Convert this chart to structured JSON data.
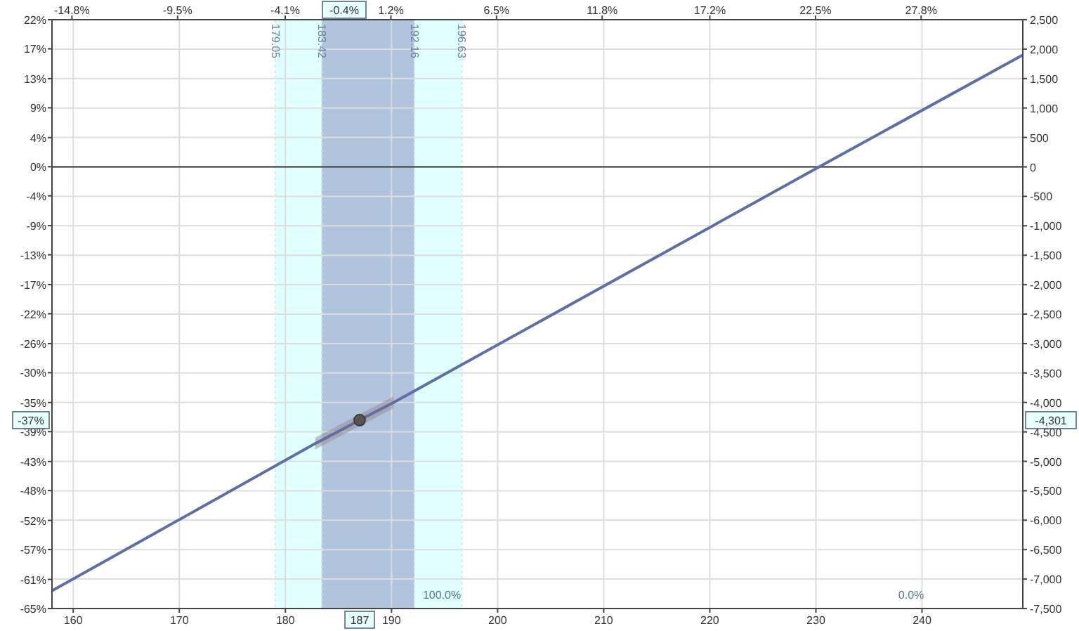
{
  "chart_data": {
    "type": "line",
    "x": [
      158,
      182.8,
      187,
      190.2,
      230.3,
      249.5
    ],
    "xlim": [
      158,
      249.5
    ],
    "xticks": [
      160,
      170,
      180,
      190,
      200,
      210,
      220,
      230,
      240
    ],
    "x2lim": [
      -15.8,
      32.9
    ],
    "x2ticks": [
      {
        "value": -14.8,
        "label": "-14.8%"
      },
      {
        "value": -9.5,
        "label": "-9.5%"
      },
      {
        "value": -4.1,
        "label": "-4.1%"
      },
      {
        "value": 1.2,
        "label": "1.2%"
      },
      {
        "value": 6.5,
        "label": "6.5%"
      },
      {
        "value": 11.8,
        "label": "11.8%"
      },
      {
        "value": 17.2,
        "label": "17.2%"
      },
      {
        "value": 22.5,
        "label": "22.5%"
      },
      {
        "value": 27.8,
        "label": "27.8%"
      }
    ],
    "ylim": [
      -65.2,
      21.7
    ],
    "yticks": [
      {
        "value": 21.7,
        "label": "22%"
      },
      {
        "value": 17.4,
        "label": "17%"
      },
      {
        "value": 13.0,
        "label": "13%"
      },
      {
        "value": 8.7,
        "label": "9%"
      },
      {
        "value": 4.3,
        "label": "4%"
      },
      {
        "value": 0,
        "label": "0%"
      },
      {
        "value": -4.3,
        "label": "-4%"
      },
      {
        "value": -8.7,
        "label": "-9%"
      },
      {
        "value": -13.0,
        "label": "-13%"
      },
      {
        "value": -17.4,
        "label": "-17%"
      },
      {
        "value": -21.7,
        "label": "-22%"
      },
      {
        "value": -26.1,
        "label": "-26%"
      },
      {
        "value": -30.4,
        "label": "-30%"
      },
      {
        "value": -34.8,
        "label": "-35%"
      },
      {
        "value": -39.1,
        "label": "-39%"
      },
      {
        "value": -43.5,
        "label": "-43%"
      },
      {
        "value": -47.8,
        "label": "-48%"
      },
      {
        "value": -52.2,
        "label": "-52%"
      },
      {
        "value": -56.5,
        "label": "-57%"
      },
      {
        "value": -60.9,
        "label": "-61%"
      },
      {
        "value": -65.2,
        "label": "-65%"
      }
    ],
    "y2lim": [
      -7500,
      2500
    ],
    "y2ticks": [
      {
        "value": 2500,
        "label": "2,500"
      },
      {
        "value": 2000,
        "label": "2,000"
      },
      {
        "value": 1500,
        "label": "1,500"
      },
      {
        "value": 1000,
        "label": "1,000"
      },
      500,
      0,
      -500,
      {
        "value": -1000,
        "label": "-1,000"
      },
      {
        "value": -1500,
        "label": "-1,500"
      },
      {
        "value": -2000,
        "label": "-2,000"
      },
      {
        "value": -2500,
        "label": "-2,500"
      },
      {
        "value": -3000,
        "label": "-3,000"
      },
      {
        "value": -3500,
        "label": "-3,500"
      },
      {
        "value": -4000,
        "label": "-4,000"
      },
      {
        "value": -4500,
        "label": "-4,500"
      },
      {
        "value": -5000,
        "label": "-5,000"
      },
      {
        "value": -5500,
        "label": "-5,500"
      },
      {
        "value": -6000,
        "label": "-6,000"
      },
      {
        "value": -6500,
        "label": "-6,500"
      },
      {
        "value": -7000,
        "label": "-7,000"
      },
      {
        "value": -7500,
        "label": "-7,500"
      }
    ],
    "series": [
      {
        "axis": "y2",
        "color": "#5f6fa3",
        "values": [
          -7200,
          -4700,
          -4300,
          -4000,
          0,
          1900
        ],
        "lower": [
          null,
          -4800,
          -4400,
          -4100,
          null,
          null
        ],
        "upper": [
          null,
          -4600,
          -4200,
          -3900,
          null,
          null
        ]
      },
      {
        "type": "scatter",
        "axis": "y2",
        "color": "#555555",
        "marker": "circle",
        "x": [
          187
        ],
        "values": [
          -4301
        ]
      }
    ],
    "bands": [
      {
        "axis": "x",
        "from": 179.05,
        "to": 196.63,
        "color": "#e0ffff"
      },
      {
        "axis": "x",
        "from": 183.42,
        "to": 192.16,
        "color": "#b0c4de"
      }
    ],
    "ref_lines": [
      {
        "axis": "x",
        "value": 179.05,
        "label": "179.05",
        "color": "#d8e8f0",
        "line_style": "dotted"
      },
      {
        "axis": "x",
        "value": 183.42,
        "label": "183.42",
        "color": "#d8e8f0",
        "line_style": "dotted"
      },
      {
        "axis": "x",
        "value": 192.16,
        "label": "192.16",
        "color": "#d8e8f0",
        "line_style": "dotted"
      },
      {
        "axis": "x",
        "value": 196.63,
        "label": "196.63",
        "color": "#d8e8f0",
        "line_style": "dotted"
      },
      {
        "axis": "y2",
        "value": 0,
        "color": "#333333",
        "line_style": "solid"
      }
    ],
    "annotations": [
      "187",
      "-0.4%",
      "-37%",
      "-4,301",
      "100.0%",
      "0.0%"
    ],
    "grid": true,
    "marker": "none",
    "line_style": "solid"
  }
}
